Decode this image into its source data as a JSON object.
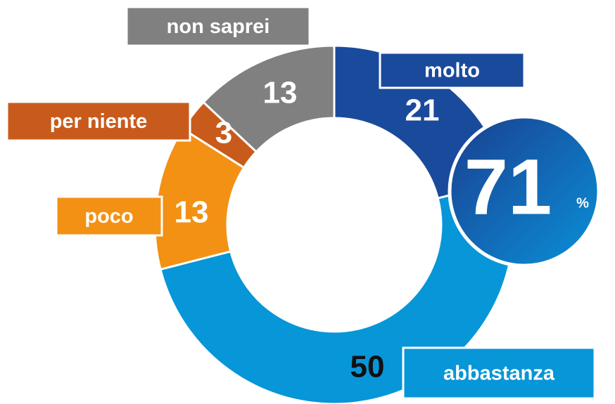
{
  "chart_data": {
    "type": "donut",
    "categories": [
      "molto",
      "abbastanza",
      "poco",
      "per niente",
      "non saprei"
    ],
    "values": [
      21,
      50,
      13,
      3,
      13
    ],
    "colors": [
      "#1a4a9c",
      "#0796d8",
      "#f39114",
      "#c85b1c",
      "#808080"
    ],
    "highlight": {
      "value": 71,
      "unit": "%"
    }
  }
}
